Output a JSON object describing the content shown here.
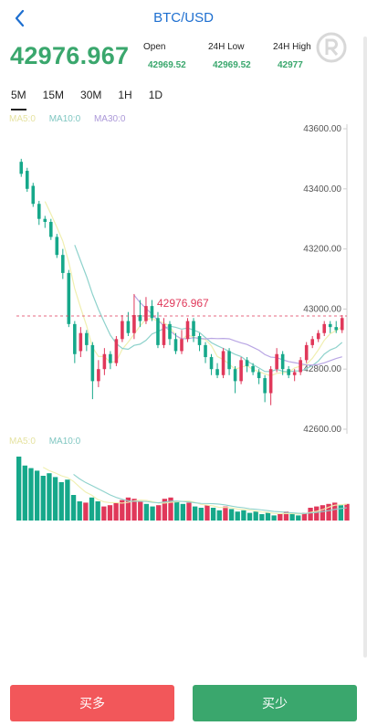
{
  "header": {
    "title": "BTC/USD"
  },
  "ticker": {
    "price": "42976.967",
    "open_label": "Open",
    "open_value": "42969.52",
    "low_label": "24H Low",
    "low_value": "42969.52",
    "high_label": "24H High",
    "high_value": "42977"
  },
  "tabs": [
    "5M",
    "15M",
    "30M",
    "1H",
    "1D"
  ],
  "active_tab": "5M",
  "ma_legend": {
    "ma5": "MA5:0",
    "ma10": "MA10:0",
    "ma30": "MA30:0"
  },
  "vol_legend": {
    "ma5": "MA5:0",
    "ma10": "MA10:0"
  },
  "buttons": {
    "buy": "买多",
    "sell": "买少"
  },
  "colors": {
    "up": "#e0385a",
    "down": "#16a88a",
    "price_text": "#3aa76d",
    "accent": "#1e6fd0",
    "buy_bg": "#f2575a",
    "sell_bg": "#3aa76d",
    "ma5": "#f0efb0",
    "ma10": "#8ed2cc",
    "ma30": "#b9a6e4"
  },
  "chart_data": {
    "type": "candlestick",
    "y_ticks": [
      "43600.00",
      "43400.00",
      "43200.00",
      "43000.00",
      "42800.00",
      "42600.00"
    ],
    "ylim": [
      42600,
      43600
    ],
    "current_price_label": "42976.967",
    "current_price": 42976.967,
    "candles": [
      [
        43490,
        43450,
        43500,
        43440
      ],
      [
        43460,
        43400,
        43470,
        43390
      ],
      [
        43410,
        43350,
        43420,
        43340
      ],
      [
        43350,
        43300,
        43360,
        43280
      ],
      [
        43300,
        43290,
        43310,
        43270
      ],
      [
        43290,
        43240,
        43300,
        43230
      ],
      [
        43240,
        43180,
        43250,
        43170
      ],
      [
        43180,
        43120,
        43200,
        43100
      ],
      [
        43120,
        42950,
        43130,
        42940
      ],
      [
        42950,
        42850,
        42960,
        42820
      ],
      [
        42860,
        42920,
        42940,
        42840
      ],
      [
        42920,
        42880,
        42930,
        42860
      ],
      [
        42880,
        42760,
        42890,
        42700
      ],
      [
        42760,
        42800,
        42830,
        42740
      ],
      [
        42800,
        42850,
        42870,
        42780
      ],
      [
        42850,
        42820,
        42860,
        42800
      ],
      [
        42820,
        42900,
        42910,
        42810
      ],
      [
        42900,
        42960,
        42980,
        42890
      ],
      [
        42960,
        42920,
        42990,
        42910
      ],
      [
        42920,
        42980,
        43050,
        42900
      ],
      [
        42980,
        42960,
        43030,
        42940
      ],
      [
        42960,
        43010,
        43040,
        42950
      ],
      [
        43010,
        42970,
        43030,
        42960
      ],
      [
        42970,
        42880,
        42990,
        42870
      ],
      [
        42880,
        42950,
        42970,
        42870
      ],
      [
        42950,
        42900,
        42960,
        42880
      ],
      [
        42900,
        42860,
        42920,
        42850
      ],
      [
        42860,
        42900,
        42930,
        42850
      ],
      [
        42900,
        42960,
        42970,
        42890
      ],
      [
        42960,
        42910,
        42970,
        42890
      ],
      [
        42910,
        42880,
        42920,
        42860
      ],
      [
        42880,
        42840,
        42890,
        42820
      ],
      [
        42840,
        42800,
        42850,
        42780
      ],
      [
        42800,
        42780,
        42820,
        42770
      ],
      [
        42780,
        42860,
        42870,
        42770
      ],
      [
        42860,
        42800,
        42870,
        42780
      ],
      [
        42800,
        42760,
        42810,
        42720
      ],
      [
        42760,
        42830,
        42840,
        42750
      ],
      [
        42830,
        42810,
        42840,
        42790
      ],
      [
        42810,
        42790,
        42820,
        42780
      ],
      [
        42790,
        42770,
        42800,
        42750
      ],
      [
        42770,
        42720,
        42780,
        42690
      ],
      [
        42720,
        42800,
        42810,
        42680
      ],
      [
        42800,
        42850,
        42870,
        42790
      ],
      [
        42850,
        42800,
        42860,
        42780
      ],
      [
        42800,
        42780,
        42810,
        42770
      ],
      [
        42780,
        42790,
        42800,
        42760
      ],
      [
        42790,
        42830,
        42840,
        42780
      ],
      [
        42830,
        42880,
        42890,
        42820
      ],
      [
        42880,
        42900,
        42910,
        42870
      ],
      [
        42900,
        42920,
        42930,
        42890
      ],
      [
        42920,
        42950,
        42960,
        42910
      ],
      [
        42950,
        42940,
        42960,
        42920
      ],
      [
        42940,
        42930,
        42960,
        42920
      ],
      [
        42930,
        42970,
        42980,
        42920
      ]
    ],
    "volumes": [
      [
        1.0,
        "down"
      ],
      [
        0.86,
        "down"
      ],
      [
        0.82,
        "down"
      ],
      [
        0.78,
        "down"
      ],
      [
        0.7,
        "down"
      ],
      [
        0.74,
        "down"
      ],
      [
        0.68,
        "down"
      ],
      [
        0.6,
        "down"
      ],
      [
        0.64,
        "down"
      ],
      [
        0.4,
        "down"
      ],
      [
        0.3,
        "down"
      ],
      [
        0.28,
        "up"
      ],
      [
        0.36,
        "down"
      ],
      [
        0.3,
        "down"
      ],
      [
        0.22,
        "up"
      ],
      [
        0.24,
        "up"
      ],
      [
        0.28,
        "up"
      ],
      [
        0.32,
        "up"
      ],
      [
        0.36,
        "up"
      ],
      [
        0.34,
        "up"
      ],
      [
        0.3,
        "up"
      ],
      [
        0.26,
        "down"
      ],
      [
        0.22,
        "down"
      ],
      [
        0.24,
        "up"
      ],
      [
        0.34,
        "up"
      ],
      [
        0.36,
        "up"
      ],
      [
        0.3,
        "down"
      ],
      [
        0.26,
        "down"
      ],
      [
        0.28,
        "up"
      ],
      [
        0.22,
        "down"
      ],
      [
        0.2,
        "down"
      ],
      [
        0.24,
        "up"
      ],
      [
        0.2,
        "down"
      ],
      [
        0.16,
        "down"
      ],
      [
        0.22,
        "up"
      ],
      [
        0.18,
        "down"
      ],
      [
        0.14,
        "down"
      ],
      [
        0.16,
        "down"
      ],
      [
        0.12,
        "down"
      ],
      [
        0.14,
        "down"
      ],
      [
        0.1,
        "down"
      ],
      [
        0.12,
        "down"
      ],
      [
        0.08,
        "down"
      ],
      [
        0.1,
        "up"
      ],
      [
        0.14,
        "up"
      ],
      [
        0.1,
        "down"
      ],
      [
        0.08,
        "down"
      ],
      [
        0.12,
        "up"
      ],
      [
        0.2,
        "up"
      ],
      [
        0.22,
        "up"
      ],
      [
        0.24,
        "up"
      ],
      [
        0.26,
        "up"
      ],
      [
        0.28,
        "up"
      ],
      [
        0.24,
        "down"
      ],
      [
        0.26,
        "up"
      ]
    ]
  }
}
